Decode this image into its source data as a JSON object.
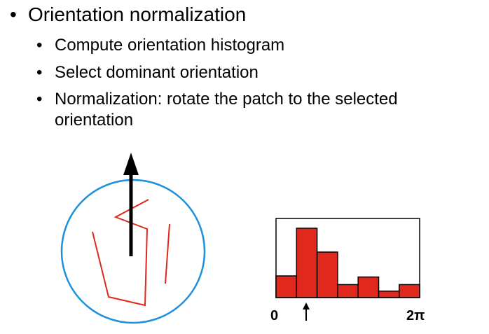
{
  "bullets": {
    "main": "Orientation normalization",
    "sub": [
      "Compute orientation histogram",
      "Select dominant orientation",
      "Normalization: rotate the patch to the selected orientation"
    ]
  },
  "chart_data": {
    "type": "bar",
    "values": [
      2,
      6.4,
      4.2,
      1.2,
      1.9,
      0.6,
      1.2
    ],
    "tick_labels": [
      "0",
      "2π"
    ],
    "marker_symbol": "↑",
    "dominant_bin": 1,
    "colors": {
      "bar": "#e0281c",
      "circle": "#1e90dc",
      "strokes": "#e0281c"
    }
  }
}
